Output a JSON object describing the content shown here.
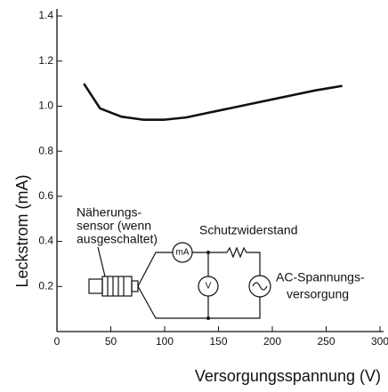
{
  "chart_data": {
    "type": "line",
    "x_label": "Versorgungsspannung (V)",
    "y_label": "Leckstrom (mA)",
    "x": [
      25,
      40,
      60,
      80,
      100,
      120,
      140,
      160,
      180,
      200,
      220,
      240,
      265
    ],
    "series": [
      {
        "color": "#111111",
        "values": [
          1.1,
          0.99,
          0.953,
          0.94,
          0.94,
          0.95,
          0.97,
          0.99,
          1.01,
          1.03,
          1.05,
          1.07,
          1.09
        ]
      }
    ],
    "xlim": [
      0,
      300
    ],
    "xticks": [
      0,
      50,
      100,
      150,
      200,
      250,
      300
    ],
    "ylim": [
      0,
      1.4
    ],
    "yticks": [
      0.2,
      0.4,
      0.6,
      0.8,
      {
        "value": 1,
        "label": "1.0"
      },
      1.2,
      1.4
    ],
    "grid": false,
    "annotations": [
      "Näherungs-",
      "sensor (wenn",
      "ausgeschaltet)",
      "Schutzwiderstand",
      "AC-Spannungs-",
      "versorgung",
      "mA",
      "V"
    ]
  }
}
